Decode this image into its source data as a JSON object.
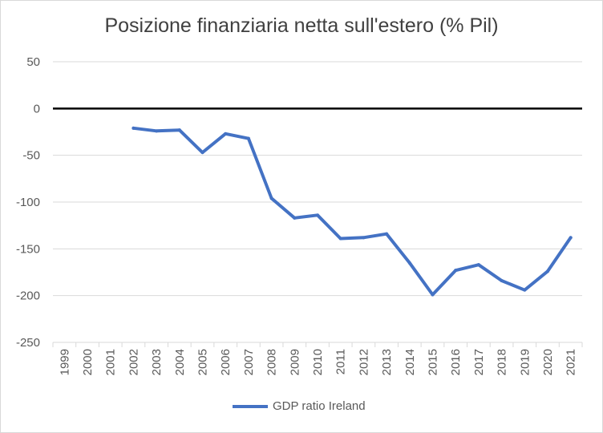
{
  "chart_data": {
    "type": "line",
    "title": "Posizione finanziaria netta sull'estero (% Pil)",
    "xlabel": "",
    "ylabel": "",
    "categories": [
      "1999",
      "2000",
      "2001",
      "2002",
      "2003",
      "2004",
      "2005",
      "2006",
      "2007",
      "2008",
      "2009",
      "2010",
      "2011",
      "2012",
      "2013",
      "2014",
      "2015",
      "2016",
      "2017",
      "2018",
      "2019",
      "2020",
      "2021"
    ],
    "series": [
      {
        "name": "GDP ratio Ireland",
        "color": "#4472c4",
        "values": [
          null,
          null,
          null,
          -21,
          -24,
          -23,
          -47,
          -27,
          -32,
          -96,
          -117,
          -114,
          -139,
          -138,
          -134,
          -165,
          -199,
          -173,
          -167,
          -184,
          -194,
          -174,
          -138
        ]
      }
    ],
    "ylim": [
      -250,
      50
    ],
    "yticks": [
      50,
      0,
      -50,
      -100,
      -150,
      -200,
      -250
    ],
    "grid": true,
    "legend": "bottom"
  }
}
